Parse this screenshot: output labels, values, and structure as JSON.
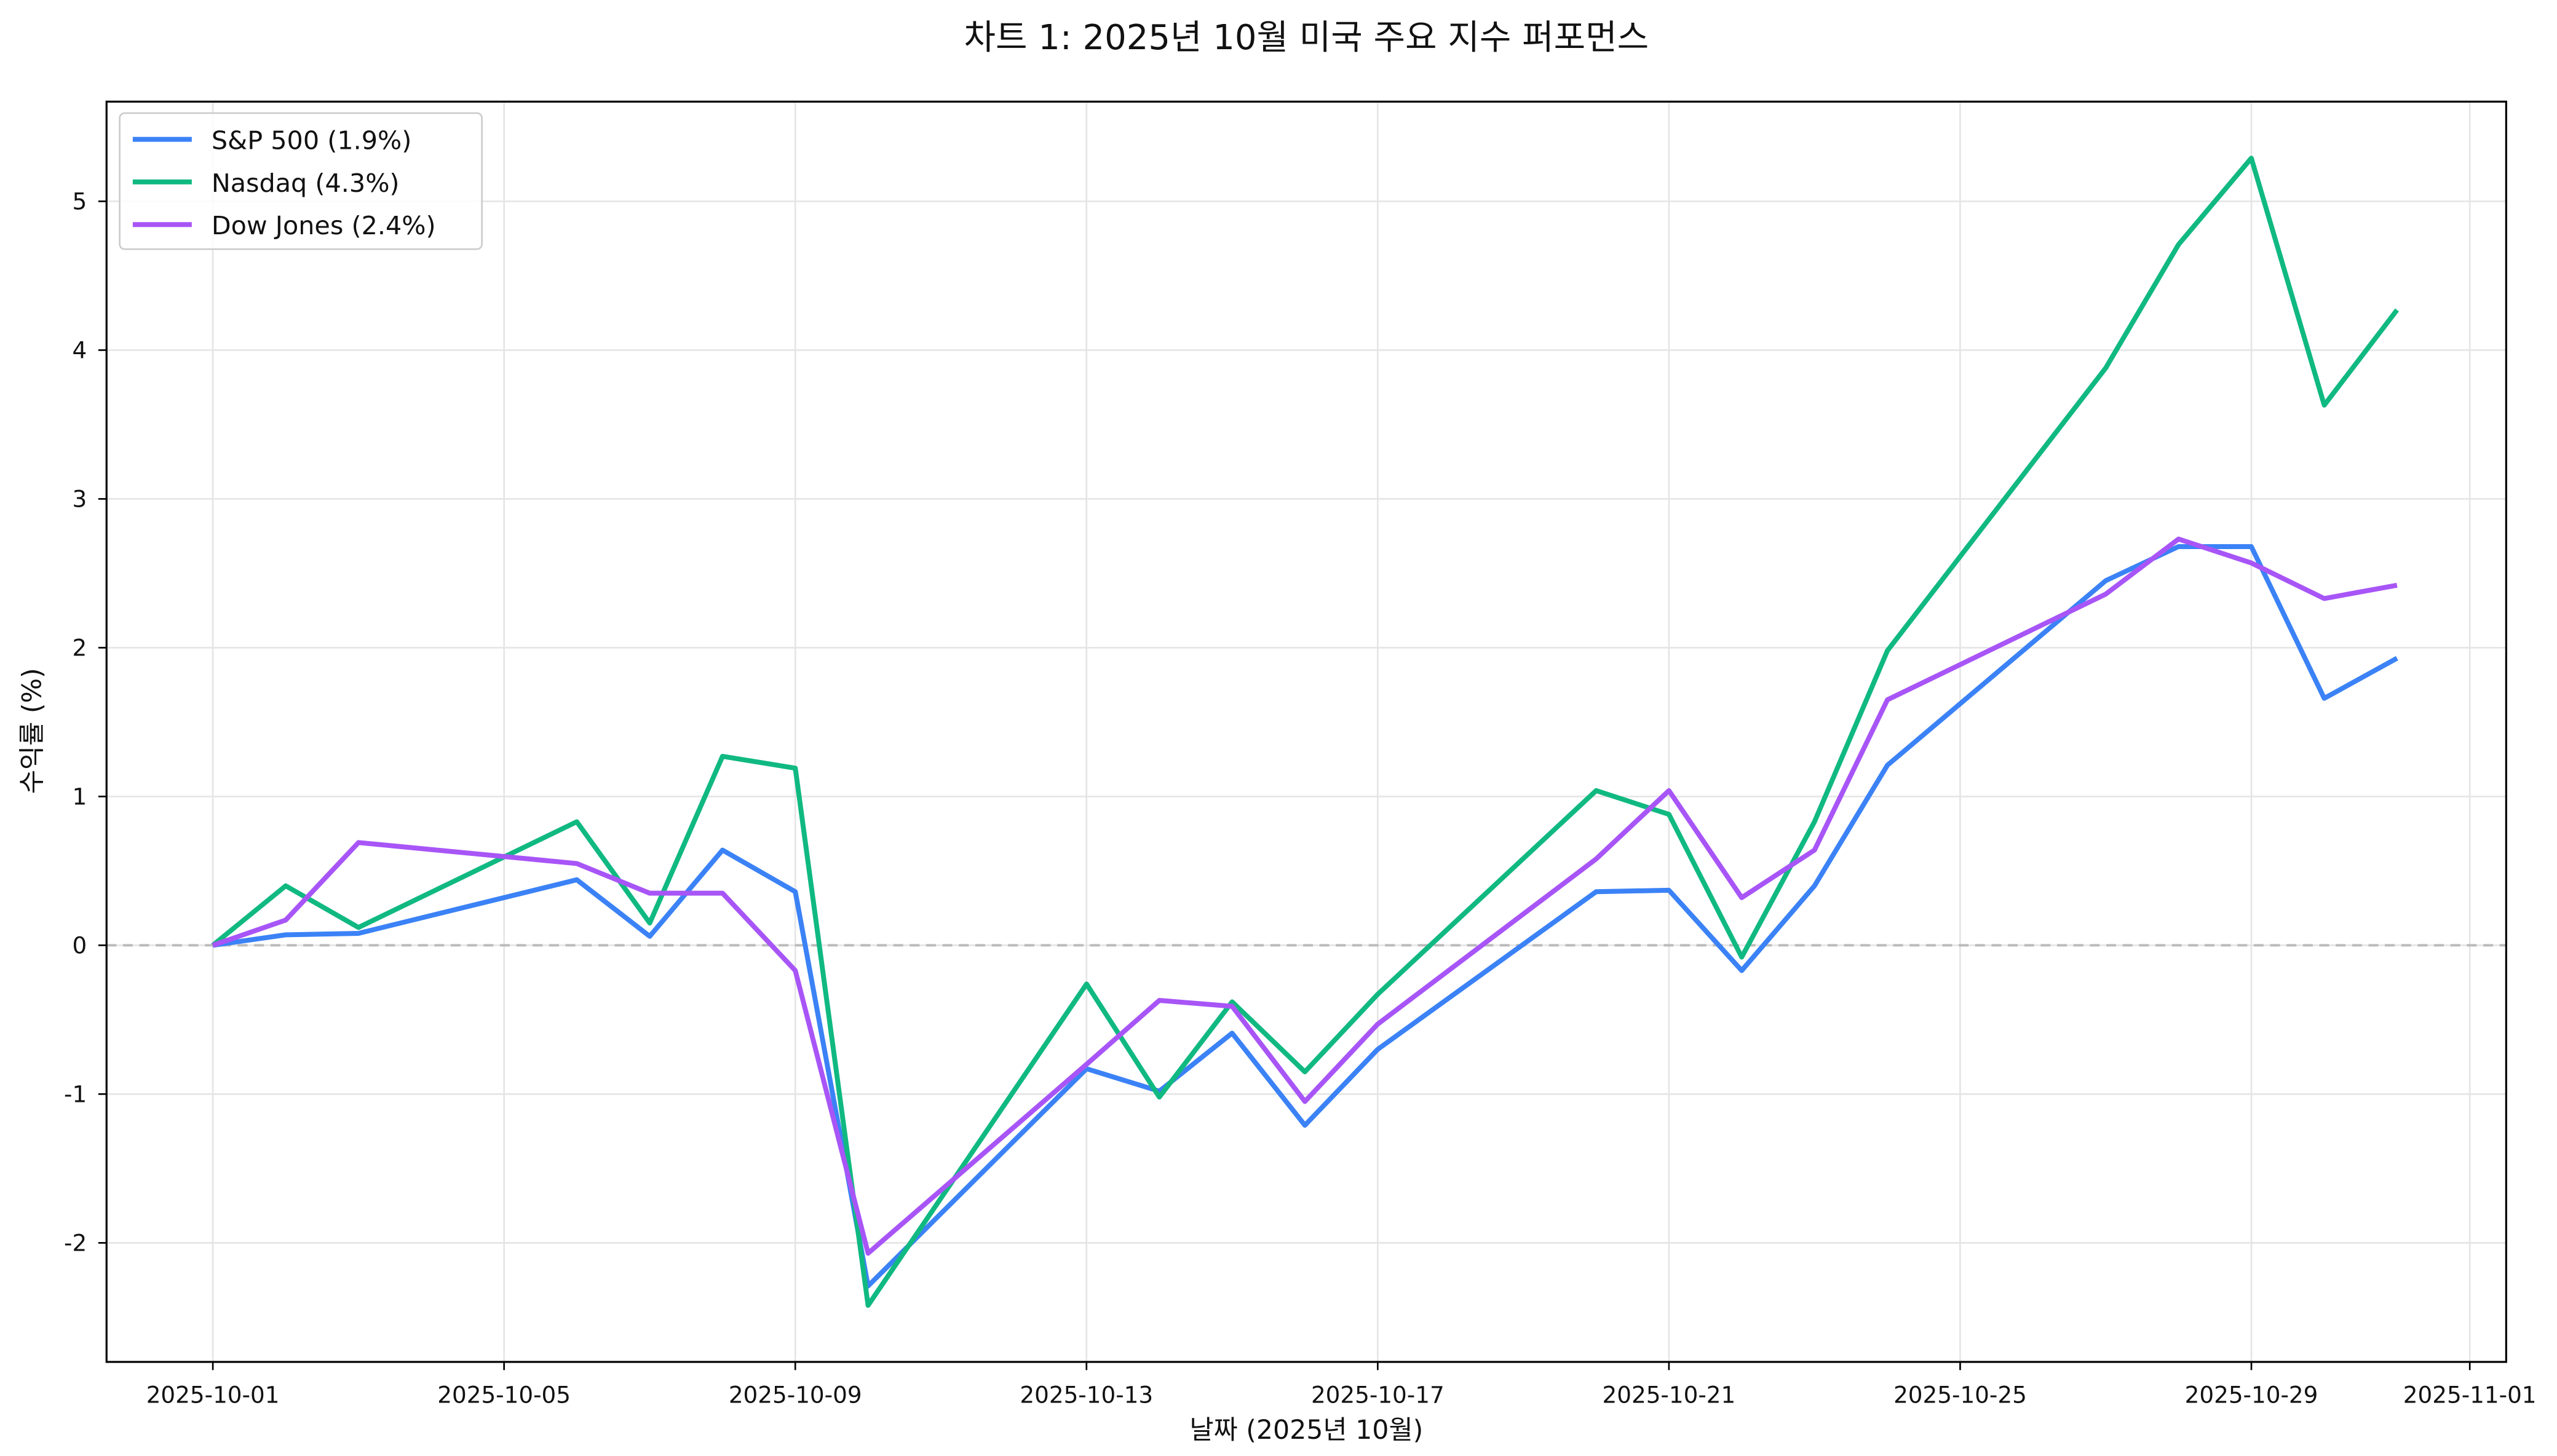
{
  "chart_data": {
    "type": "line",
    "title": "차트 1: 2025년 10월 미국 주요 지수 퍼포먼스",
    "xlabel": "날짜 (2025년 10월)",
    "ylabel": "수익률 (%)",
    "x": [
      "2025-10-01",
      "2025-10-02",
      "2025-10-03",
      "2025-10-06",
      "2025-10-07",
      "2025-10-08",
      "2025-10-09",
      "2025-10-10",
      "2025-10-13",
      "2025-10-14",
      "2025-10-15",
      "2025-10-16",
      "2025-10-17",
      "2025-10-20",
      "2025-10-21",
      "2025-10-22",
      "2025-10-23",
      "2025-10-24",
      "2025-10-27",
      "2025-10-28",
      "2025-10-29",
      "2025-10-30",
      "2025-10-31"
    ],
    "series": [
      {
        "name": "S&P 500 (1.9%)",
        "color": "#3b82f6",
        "values": [
          0,
          0.07,
          0.08,
          0.44,
          0.06,
          0.64,
          0.36,
          -2.29,
          -0.83,
          -0.98,
          -0.59,
          -1.21,
          -0.7,
          0.36,
          0.37,
          -0.17,
          0.4,
          1.21,
          2.45,
          2.68,
          2.68,
          1.66,
          1.93
        ]
      },
      {
        "name": "Nasdaq (4.3%)",
        "color": "#10b981",
        "values": [
          0,
          0.4,
          0.12,
          0.83,
          0.15,
          1.27,
          1.19,
          -2.42,
          -0.26,
          -1.02,
          -0.38,
          -0.85,
          -0.33,
          1.04,
          0.88,
          -0.08,
          0.83,
          1.98,
          3.88,
          4.71,
          5.29,
          3.63,
          4.27
        ]
      },
      {
        "name": "Dow Jones (2.4%)",
        "color": "#a855f7",
        "values": [
          0,
          0.17,
          0.69,
          0.55,
          0.35,
          0.35,
          -0.17,
          -2.07,
          -0.8,
          -0.37,
          -0.41,
          -1.05,
          -0.53,
          0.58,
          1.04,
          0.32,
          0.64,
          1.65,
          2.36,
          2.73,
          2.57,
          2.33,
          2.42
        ]
      }
    ],
    "xticks": [
      "2025-10-01",
      "2025-10-05",
      "2025-10-09",
      "2025-10-13",
      "2025-10-17",
      "2025-10-21",
      "2025-10-25",
      "2025-10-29",
      "2025-11-01"
    ],
    "yticks": [
      -2,
      -1,
      0,
      1,
      2,
      3,
      4,
      5
    ],
    "xlim": [
      "2025-09-29",
      "2025-11-01"
    ],
    "ylim": [
      -2.8,
      5.67
    ],
    "grid": true,
    "zero_line": true,
    "legend": "top-left"
  }
}
